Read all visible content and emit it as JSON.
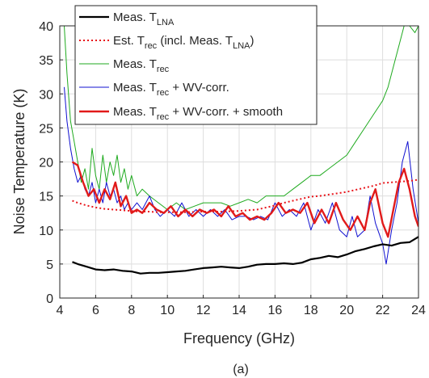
{
  "chart_data": {
    "type": "line",
    "caption": "(a)",
    "xlabel": "Frequency (GHz)",
    "ylabel": "Noise Temperature (K)",
    "xlim": [
      4,
      24
    ],
    "ylim": [
      0,
      40
    ],
    "xticks": [
      4,
      6,
      8,
      10,
      12,
      14,
      16,
      18,
      20,
      22,
      24
    ],
    "yticks": [
      0,
      5,
      10,
      15,
      20,
      25,
      30,
      35,
      40
    ],
    "grid": true,
    "legend_position": "top-left",
    "series": [
      {
        "name": "Meas. T",
        "name_sub": "LNA",
        "name_after": "",
        "color": "#000000",
        "width": 2.2,
        "dash": "",
        "x": [
          4.7,
          5.0,
          5.5,
          6.0,
          6.5,
          7.0,
          7.5,
          8.0,
          8.5,
          9.0,
          9.5,
          10.0,
          10.5,
          11.0,
          11.5,
          12.0,
          12.5,
          13.0,
          13.5,
          14.0,
          14.5,
          15.0,
          15.5,
          16.0,
          16.5,
          17.0,
          17.5,
          18.0,
          18.5,
          19.0,
          19.5,
          20.0,
          20.5,
          21.0,
          21.5,
          22.0,
          22.5,
          23.0,
          23.5,
          24.0
        ],
        "y": [
          5.3,
          5.0,
          4.6,
          4.2,
          4.1,
          4.2,
          4.0,
          3.9,
          3.6,
          3.7,
          3.7,
          3.8,
          3.9,
          4.0,
          4.2,
          4.4,
          4.5,
          4.6,
          4.5,
          4.4,
          4.6,
          4.9,
          5.0,
          5.0,
          5.1,
          5.0,
          5.2,
          5.7,
          5.9,
          6.2,
          6.0,
          6.4,
          6.9,
          7.2,
          7.6,
          7.9,
          7.7,
          8.1,
          8.2,
          9.0
        ]
      },
      {
        "name": "Est. T",
        "name_sub": "rec",
        "name_after": " (incl. Meas. T",
        "name_sub2": "LNA",
        "name_after2": ")",
        "color": "#e8141a",
        "width": 2.0,
        "dash": "2,3",
        "x": [
          4.7,
          5.0,
          5.5,
          6.0,
          6.5,
          7.0,
          7.5,
          8.0,
          8.5,
          9.0,
          9.5,
          10.0,
          11.0,
          12.0,
          13.0,
          14.0,
          15.0,
          16.0,
          16.5,
          17.0,
          17.5,
          18.0,
          18.5,
          19.0,
          19.5,
          20.0,
          20.5,
          21.0,
          21.5,
          22.0,
          22.5,
          23.0,
          23.5,
          24.0
        ],
        "y": [
          14.3,
          14.0,
          13.6,
          13.3,
          13.1,
          13.0,
          12.9,
          12.8,
          12.7,
          12.7,
          12.6,
          12.6,
          12.6,
          12.7,
          12.7,
          12.8,
          13.0,
          13.6,
          14.0,
          14.3,
          14.6,
          14.9,
          15.0,
          15.2,
          15.4,
          15.6,
          15.9,
          16.2,
          16.5,
          16.9,
          17.0,
          17.1,
          17.2,
          17.4
        ]
      },
      {
        "name": "Meas. T",
        "name_sub": "rec",
        "name_after": "",
        "color": "#1faa1f",
        "width": 1.0,
        "dash": "",
        "x": [
          4.25,
          4.4,
          4.6,
          4.8,
          5.0,
          5.2,
          5.4,
          5.6,
          5.8,
          6.0,
          6.2,
          6.4,
          6.6,
          6.8,
          7.0,
          7.2,
          7.4,
          7.6,
          7.8,
          8.0,
          8.3,
          8.6,
          9.0,
          9.5,
          10.0,
          10.5,
          11.0,
          11.5,
          12.0,
          12.5,
          13.0,
          13.5,
          14.0,
          14.5,
          15.0,
          15.5,
          16.0,
          16.5,
          17.0,
          17.5,
          18.0,
          18.5,
          19.0,
          19.5,
          20.0,
          20.5,
          21.0,
          21.5,
          22.0,
          22.3,
          22.6,
          22.9,
          23.2,
          23.5,
          23.8,
          24.0
        ],
        "y": [
          40,
          33,
          26,
          23,
          20,
          17,
          19,
          16,
          22,
          18,
          16,
          21,
          17,
          20,
          18,
          21,
          17,
          19,
          16,
          18,
          15,
          16,
          15,
          14,
          13,
          14,
          13,
          13.5,
          14,
          14,
          14,
          13.5,
          14,
          14.5,
          14,
          15,
          15,
          15,
          16,
          17,
          18,
          18,
          19,
          20,
          21,
          23,
          25,
          27,
          29,
          31,
          34,
          37,
          40,
          40,
          39,
          40
        ]
      },
      {
        "name": "Meas. T",
        "name_sub": "rec",
        "name_after": " + WV-corr.",
        "color": "#1010d0",
        "width": 1.0,
        "dash": "",
        "x": [
          4.25,
          4.4,
          4.6,
          4.8,
          5.0,
          5.2,
          5.4,
          5.6,
          5.8,
          6.0,
          6.2,
          6.4,
          6.6,
          6.8,
          7.0,
          7.2,
          7.4,
          7.6,
          7.8,
          8.0,
          8.3,
          8.6,
          9.0,
          9.3,
          9.6,
          10.0,
          10.4,
          10.8,
          11.2,
          11.6,
          12.0,
          12.4,
          12.8,
          13.2,
          13.6,
          14.0,
          14.4,
          14.8,
          15.2,
          15.6,
          16.0,
          16.4,
          16.8,
          17.2,
          17.6,
          18.0,
          18.4,
          18.8,
          19.2,
          19.6,
          20.0,
          20.3,
          20.6,
          21.0,
          21.3,
          21.6,
          22.0,
          22.2,
          22.5,
          22.8,
          23.1,
          23.4,
          23.7,
          24.0
        ],
        "y": [
          31,
          26,
          22,
          19,
          17,
          18,
          16,
          15,
          17,
          14,
          16,
          14,
          17,
          15,
          16,
          14,
          15,
          13,
          14,
          13,
          14,
          13,
          15,
          13,
          12,
          13,
          12,
          14,
          12,
          13,
          12,
          13,
          12,
          13,
          11.5,
          12,
          12,
          11.5,
          12,
          11.5,
          14,
          12,
          13,
          12,
          14,
          10,
          13,
          11,
          14,
          10,
          9,
          12,
          9,
          10,
          15,
          11,
          8,
          5,
          10,
          14,
          20,
          23,
          16,
          11
        ]
      },
      {
        "name": "Meas. T",
        "name_sub": "rec",
        "name_after": " + WV-corr. + smooth",
        "color": "#e11a1a",
        "width": 2.4,
        "dash": "",
        "x": [
          4.7,
          5.0,
          5.3,
          5.6,
          5.9,
          6.2,
          6.5,
          6.8,
          7.1,
          7.4,
          7.7,
          8.0,
          8.3,
          8.6,
          9.0,
          9.4,
          9.8,
          10.2,
          10.6,
          11.0,
          11.4,
          11.8,
          12.2,
          12.6,
          13.0,
          13.4,
          13.8,
          14.2,
          14.6,
          15.0,
          15.4,
          15.8,
          16.2,
          16.6,
          17.0,
          17.4,
          17.8,
          18.2,
          18.6,
          19.0,
          19.4,
          19.8,
          20.2,
          20.6,
          21.0,
          21.3,
          21.6,
          22.0,
          22.3,
          22.6,
          22.9,
          23.2,
          23.5,
          23.8,
          24.0
        ],
        "y": [
          20,
          19.5,
          17,
          15,
          16,
          14,
          16,
          14.5,
          17,
          13.5,
          15,
          12.5,
          13,
          12.5,
          14,
          13,
          12.5,
          13.5,
          12,
          13,
          12,
          13,
          12.5,
          13,
          12,
          13.5,
          12,
          12.5,
          11.5,
          12,
          11.5,
          12.5,
          14,
          12.5,
          13,
          12.5,
          14,
          11,
          13,
          11,
          14,
          11.5,
          10,
          12,
          10,
          14,
          16,
          11,
          9,
          13,
          17,
          19,
          16,
          12,
          10.5
        ]
      }
    ]
  }
}
